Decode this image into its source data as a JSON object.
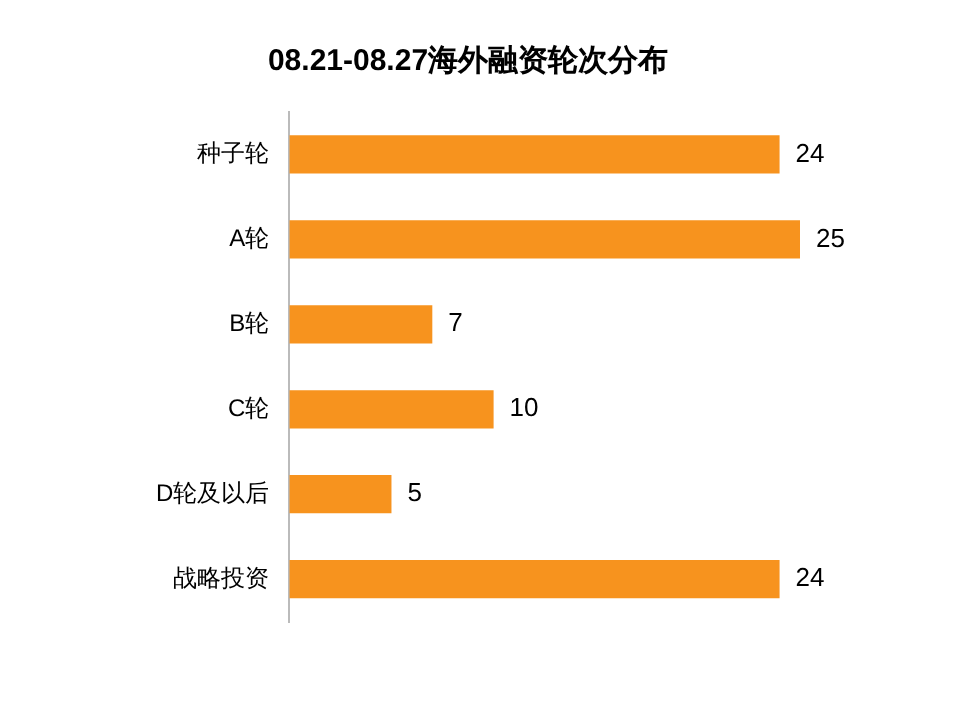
{
  "chart_data": {
    "type": "bar",
    "orientation": "horizontal",
    "title": "08.21-08.27海外融资轮次分布",
    "categories": [
      "种子轮",
      "A轮",
      "B轮",
      "C轮",
      "D轮及以后",
      "战略投资"
    ],
    "values": [
      24,
      25,
      7,
      10,
      5,
      24
    ],
    "color": "#f7931e",
    "data_labels": true,
    "tick_labels": "y",
    "legend": false
  }
}
